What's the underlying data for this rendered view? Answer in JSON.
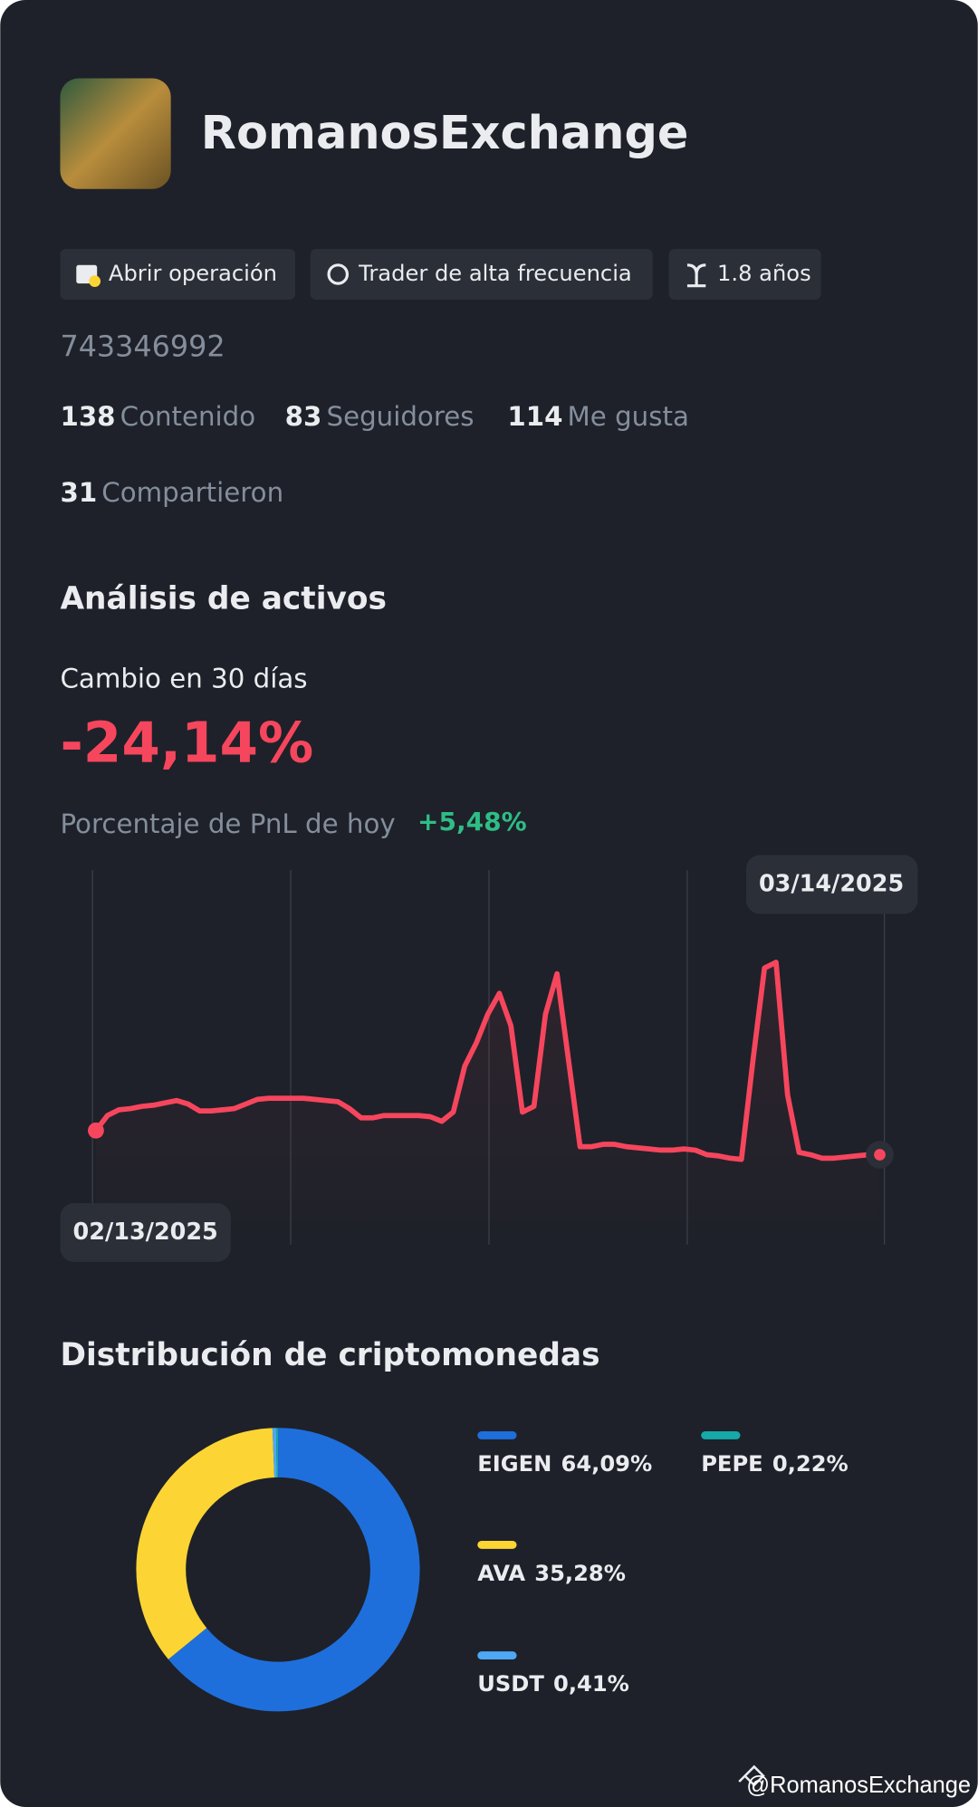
{
  "profile": {
    "name": "RomanosExchange",
    "tags": [
      "Abrir operación",
      "Trader de alta frecuencia",
      "1.8 años"
    ],
    "id": "743346992",
    "stats": [
      {
        "value": 138,
        "label": "Contenido"
      },
      {
        "value": 83,
        "label": "Seguidores"
      },
      {
        "value": 114,
        "label": "Me gusta"
      },
      {
        "value": 31,
        "label": "Compartieron"
      }
    ]
  },
  "analysis": {
    "title": "Análisis de activos",
    "change_label": "Cambio en 30 días",
    "change_value": "-24,14%",
    "pnl_label": "Porcentaje de PnL de hoy",
    "pnl_value": "+5,48%"
  },
  "chart_data": [
    {
      "type": "line",
      "start_label": "02/13/2025",
      "end_label": "03/14/2025",
      "color": "#f6465d",
      "ylim": [
        0,
        200
      ],
      "values": [
        29,
        42,
        47,
        48,
        50,
        51,
        53,
        55,
        52,
        46,
        46,
        47,
        48,
        52,
        56,
        57,
        57,
        57,
        57,
        56,
        55,
        54,
        48,
        40,
        40,
        42,
        42,
        42,
        42,
        41,
        37,
        45,
        85,
        105,
        130,
        148,
        120,
        45,
        50,
        130,
        165,
        90,
        15,
        15,
        17,
        17,
        15,
        14,
        13,
        12,
        12,
        13,
        12,
        8,
        7,
        5,
        4,
        90,
        170,
        175,
        60,
        10,
        8,
        5,
        5,
        6,
        7,
        8,
        8
      ]
    },
    {
      "type": "pie",
      "title": "Distribución de criptomonedas",
      "categories": [
        "EIGEN",
        "AVA",
        "USDT",
        "PEPE"
      ],
      "values": [
        64.09,
        35.28,
        0.41,
        0.22
      ],
      "value_labels": [
        "64,09%",
        "35,28%",
        "0,41%",
        "0,22%"
      ],
      "colors": [
        "#1e6fdb",
        "#fcd535",
        "#4fa8f5",
        "#15a9a9"
      ]
    }
  ],
  "footer": "@RomanosExchange"
}
